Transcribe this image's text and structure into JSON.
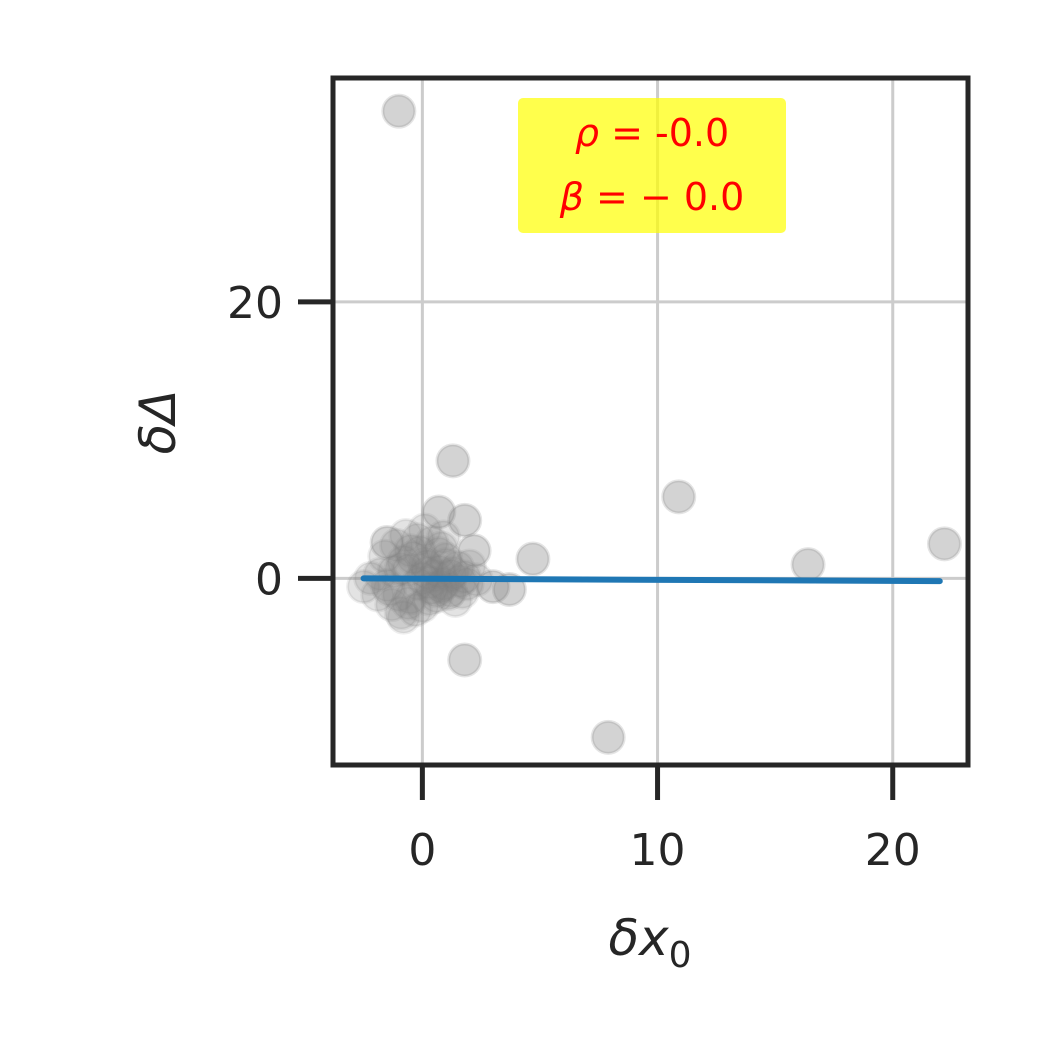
{
  "chart_data": {
    "type": "scatter",
    "xlabel": "δx",
    "xlabel_sub": "0",
    "ylabel": "δΔ",
    "xlim": [
      -3.8,
      23.2
    ],
    "ylim": [
      -13.5,
      36.2
    ],
    "xticks": [
      0,
      10,
      20
    ],
    "yticks": [
      0,
      20
    ],
    "xtick_labels": [
      "0",
      "10",
      "20"
    ],
    "ytick_labels": [
      "0",
      "20"
    ],
    "grid": true,
    "colors": {
      "points": "#808080",
      "fit_line": "#1f77b4",
      "annotation_text": "#ff0000",
      "annotation_box": "#ffff00",
      "axes": "#262626",
      "grid": "#cccccc"
    },
    "annotation": {
      "rho_label": "ρ",
      "rho_value": " = -0.0",
      "beta_label": "β",
      "beta_value": " = − 0.0",
      "placement": "top-center"
    },
    "fit_line": {
      "x": [
        -2.5,
        22.0
      ],
      "y": [
        0.0,
        -0.2
      ]
    },
    "outliers": {
      "x": [
        -1.0,
        1.3,
        0.7,
        1.8,
        4.7,
        3.7,
        10.9,
        16.4,
        22.2,
        1.8,
        7.9,
        -1.5,
        2.2,
        3.0
      ],
      "y": [
        33.8,
        8.5,
        4.8,
        4.2,
        1.4,
        -0.8,
        5.9,
        1.0,
        2.5,
        -5.9,
        -11.5,
        2.6,
        2.0,
        -0.6
      ],
      "opacity": 0.35
    },
    "cluster": {
      "x": [
        -1.2,
        -0.8,
        -0.5,
        -0.2,
        0.1,
        0.4,
        0.7,
        1.0,
        1.3,
        1.6,
        -1.5,
        -1.0,
        -0.6,
        -0.3,
        0.0,
        0.3,
        0.6,
        0.9,
        1.2,
        1.5,
        1.8,
        -1.8,
        -1.4,
        -0.9,
        -0.4,
        0.2,
        0.5,
        0.8,
        1.1,
        1.4,
        -2.2,
        -1.6,
        -1.1,
        -0.7,
        -0.1,
        0.3,
        0.7,
        1.0,
        1.9,
        2.3,
        -1.3,
        -0.9,
        -0.5,
        0.0,
        0.4,
        0.8,
        1.2,
        -0.6,
        0.1,
        0.6,
        -0.2,
        0.2,
        -1.9,
        2.0,
        -2.5,
        1.7,
        -0.8,
        0.9
      ],
      "y": [
        0.5,
        1.2,
        2.0,
        2.8,
        3.5,
        2.6,
        1.8,
        1.0,
        0.4,
        -0.2,
        -0.5,
        -1.2,
        -1.8,
        -2.3,
        -2.0,
        -1.5,
        -0.9,
        -0.4,
        0.2,
        0.8,
        0.1,
        0.3,
        -0.8,
        0.7,
        1.5,
        0.9,
        0.2,
        -0.6,
        -1.1,
        -1.6,
        0.0,
        1.6,
        2.4,
        3.1,
        1.9,
        -0.3,
        0.5,
        1.4,
        -0.4,
        -0.1,
        -1.9,
        -2.5,
        -1.4,
        0.0,
        -0.7,
        2.2,
        -0.9,
        0.6,
        1.1,
        -1.3,
        -0.4,
        0.4,
        -1.2,
        0.9,
        -0.6,
        -1.0,
        -2.8,
        3.0
      ],
      "opacity": 0.22
    }
  }
}
